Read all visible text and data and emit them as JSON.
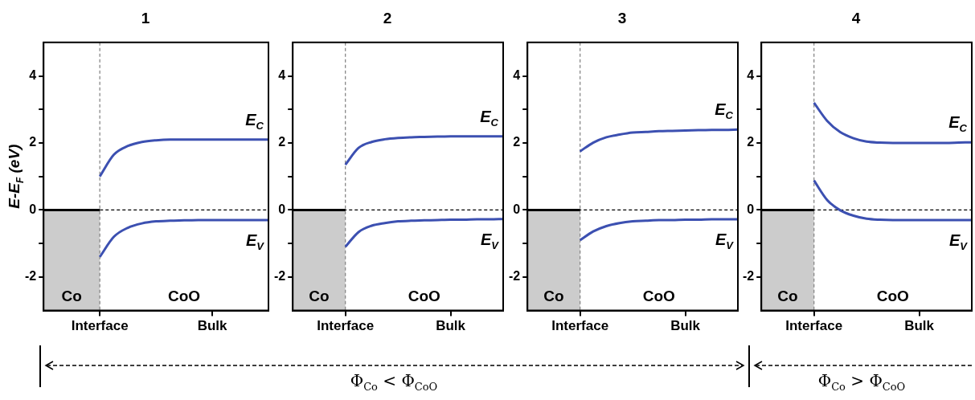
{
  "chart_data": [
    {
      "type": "line",
      "title": "1",
      "ylabel": "E-E$_{F}$ (eV)",
      "categories": [
        null,
        null,
        null,
        null,
        "Interface",
        null,
        null,
        null,
        null,
        null,
        null,
        null,
        "Bulk",
        null,
        null,
        null,
        null
      ],
      "ylim": [
        -3,
        5
      ],
      "yticks": [
        -2,
        {
          "value": -1,
          "label": null
        },
        0,
        {
          "value": 1,
          "label": null
        },
        2,
        {
          "value": 3,
          "label": null
        },
        4
      ],
      "series": [
        {
          "color": "#000000",
          "values": [
            0,
            0,
            0,
            0,
            0,
            null,
            null,
            null,
            null,
            null,
            null,
            null,
            null,
            null,
            null,
            null,
            null
          ],
          "lower": [
            -3,
            -3,
            -3,
            -3,
            -3,
            null,
            null,
            null,
            null,
            null,
            null,
            null,
            null,
            null,
            null,
            null,
            null
          ],
          "upper": [
            0,
            0,
            0,
            0,
            0,
            null,
            null,
            null,
            null,
            null,
            null,
            null,
            null,
            null,
            null,
            null,
            null
          ]
        },
        {
          "name": "E$_{C}$",
          "color": "#3c50b1",
          "values": [
            null,
            null,
            null,
            null,
            1.0,
            1.65,
            1.91,
            2.03,
            2.08,
            2.1,
            2.1,
            2.1,
            2.1,
            2.1,
            2.1,
            2.1,
            2.1
          ]
        },
        {
          "name": "E$_{V}$",
          "color": "#3c50b1",
          "values": [
            null,
            null,
            null,
            null,
            -1.4,
            -0.8,
            -0.53,
            -0.4,
            -0.34,
            -0.32,
            -0.31,
            -0.3,
            -0.3,
            -0.3,
            -0.3,
            -0.3,
            -0.3
          ]
        }
      ],
      "ref_lines": [
        {
          "axis": "y",
          "value": 0,
          "color": "#000000",
          "line_style": "dashed"
        },
        {
          "axis": "x",
          "value": "Interface",
          "color": "#888888",
          "line_style": "dashed"
        }
      ],
      "annotations": [
        "Co",
        "CoO"
      ]
    },
    {
      "type": "line",
      "title": "2",
      "categories": [
        null,
        null,
        null,
        null,
        "Interface",
        null,
        null,
        null,
        null,
        null,
        null,
        null,
        "Bulk",
        null,
        null,
        null,
        null
      ],
      "ylim": [
        -3,
        5
      ],
      "yticks": [
        -2,
        {
          "value": -1,
          "label": null
        },
        0,
        {
          "value": 1,
          "label": null
        },
        2,
        {
          "value": 3,
          "label": null
        },
        4
      ],
      "series": [
        {
          "color": "#000000",
          "values": [
            0,
            0,
            0,
            0,
            0,
            null,
            null,
            null,
            null,
            null,
            null,
            null,
            null,
            null,
            null,
            null,
            null
          ],
          "lower": [
            -3,
            -3,
            -3,
            -3,
            -3,
            null,
            null,
            null,
            null,
            null,
            null,
            null,
            null,
            null,
            null,
            null,
            null
          ],
          "upper": [
            0,
            0,
            0,
            0,
            0,
            null,
            null,
            null,
            null,
            null,
            null,
            null,
            null,
            null,
            null,
            null,
            null
          ]
        },
        {
          "name": "E$_{C}$",
          "color": "#3c50b1",
          "values": [
            null,
            null,
            null,
            null,
            1.35,
            1.85,
            2.03,
            2.11,
            2.15,
            2.17,
            2.18,
            2.19,
            2.2,
            2.2,
            2.2,
            2.2,
            2.2
          ]
        },
        {
          "name": "E$_{V}$",
          "color": "#3c50b1",
          "values": [
            null,
            null,
            null,
            null,
            -1.1,
            -0.66,
            -0.47,
            -0.39,
            -0.34,
            -0.32,
            -0.31,
            -0.3,
            -0.29,
            -0.29,
            -0.28,
            -0.28,
            -0.27
          ]
        }
      ],
      "ref_lines": [
        {
          "axis": "y",
          "value": 0,
          "color": "#000000",
          "line_style": "dashed"
        },
        {
          "axis": "x",
          "value": "Interface",
          "color": "#888888",
          "line_style": "dashed"
        }
      ],
      "annotations": [
        "Co",
        "CoO",
        "Φ$_{Co}$ < Φ$_{CoO}$"
      ]
    },
    {
      "type": "line",
      "title": "3",
      "categories": [
        null,
        null,
        null,
        null,
        "Interface",
        null,
        null,
        null,
        null,
        null,
        null,
        null,
        "Bulk",
        null,
        null,
        null,
        null
      ],
      "ylim": [
        -3,
        5
      ],
      "yticks": [
        -2,
        {
          "value": -1,
          "label": null
        },
        0,
        {
          "value": 1,
          "label": null
        },
        2,
        {
          "value": 3,
          "label": null
        },
        4
      ],
      "series": [
        {
          "color": "#000000",
          "values": [
            0,
            0,
            0,
            0,
            0,
            null,
            null,
            null,
            null,
            null,
            null,
            null,
            null,
            null,
            null,
            null,
            null
          ],
          "lower": [
            -3,
            -3,
            -3,
            -3,
            -3,
            null,
            null,
            null,
            null,
            null,
            null,
            null,
            null,
            null,
            null,
            null,
            null
          ],
          "upper": [
            0,
            0,
            0,
            0,
            0,
            null,
            null,
            null,
            null,
            null,
            null,
            null,
            null,
            null,
            null,
            null,
            null
          ]
        },
        {
          "name": "E$_{C}$",
          "color": "#3c50b1",
          "values": [
            null,
            null,
            null,
            null,
            1.75,
            2.01,
            2.17,
            2.25,
            2.31,
            2.33,
            2.35,
            2.36,
            2.37,
            2.38,
            2.39,
            2.39,
            2.4
          ]
        },
        {
          "name": "E$_{V}$",
          "color": "#3c50b1",
          "values": [
            null,
            null,
            null,
            null,
            -0.9,
            -0.64,
            -0.48,
            -0.39,
            -0.34,
            -0.32,
            -0.3,
            -0.3,
            -0.29,
            -0.29,
            -0.28,
            -0.28,
            -0.28
          ]
        }
      ],
      "ref_lines": [
        {
          "axis": "y",
          "value": 0,
          "color": "#000000",
          "line_style": "dashed"
        },
        {
          "axis": "x",
          "value": "Interface",
          "color": "#888888",
          "line_style": "dashed"
        }
      ],
      "annotations": [
        "Co",
        "CoO"
      ]
    },
    {
      "type": "line",
      "title": "4",
      "categories": [
        null,
        null,
        null,
        null,
        "Interface",
        null,
        null,
        null,
        null,
        null,
        null,
        null,
        "Bulk",
        null,
        null,
        null,
        null
      ],
      "ylim": [
        -3,
        5
      ],
      "yticks": [
        -2,
        {
          "value": -1,
          "label": null
        },
        0,
        {
          "value": 1,
          "label": null
        },
        2,
        {
          "value": 3,
          "label": null
        },
        4
      ],
      "series": [
        {
          "color": "#000000",
          "values": [
            0,
            0,
            0,
            0,
            0,
            null,
            null,
            null,
            null,
            null,
            null,
            null,
            null,
            null,
            null,
            null,
            null
          ],
          "lower": [
            -3,
            -3,
            -3,
            -3,
            -3,
            null,
            null,
            null,
            null,
            null,
            null,
            null,
            null,
            null,
            null,
            null,
            null
          ],
          "upper": [
            0,
            0,
            0,
            0,
            0,
            null,
            null,
            null,
            null,
            null,
            null,
            null,
            null,
            null,
            null,
            null,
            null
          ]
        },
        {
          "name": "E$_{C}$",
          "color": "#3c50b1",
          "values": [
            null,
            null,
            null,
            null,
            3.2,
            2.66,
            2.32,
            2.14,
            2.04,
            2.01,
            2.0,
            2.0,
            2.0,
            2.0,
            2.0,
            2.01,
            2.02
          ]
        },
        {
          "name": "E$_{V}$",
          "color": "#3c50b1",
          "values": [
            null,
            null,
            null,
            null,
            0.88,
            0.3,
            -0.01,
            -0.17,
            -0.26,
            -0.29,
            -0.3,
            -0.3,
            -0.3,
            -0.3,
            -0.3,
            -0.3,
            -0.3
          ]
        }
      ],
      "ref_lines": [
        {
          "axis": "y",
          "value": 0,
          "color": "#000000",
          "line_style": "dashed"
        },
        {
          "axis": "x",
          "value": "Interface",
          "color": "#888888",
          "line_style": "dashed"
        }
      ],
      "annotations": [
        "Co",
        "CoO",
        "Φ$_{Co}$ > Φ$_{CoO}$"
      ]
    }
  ]
}
